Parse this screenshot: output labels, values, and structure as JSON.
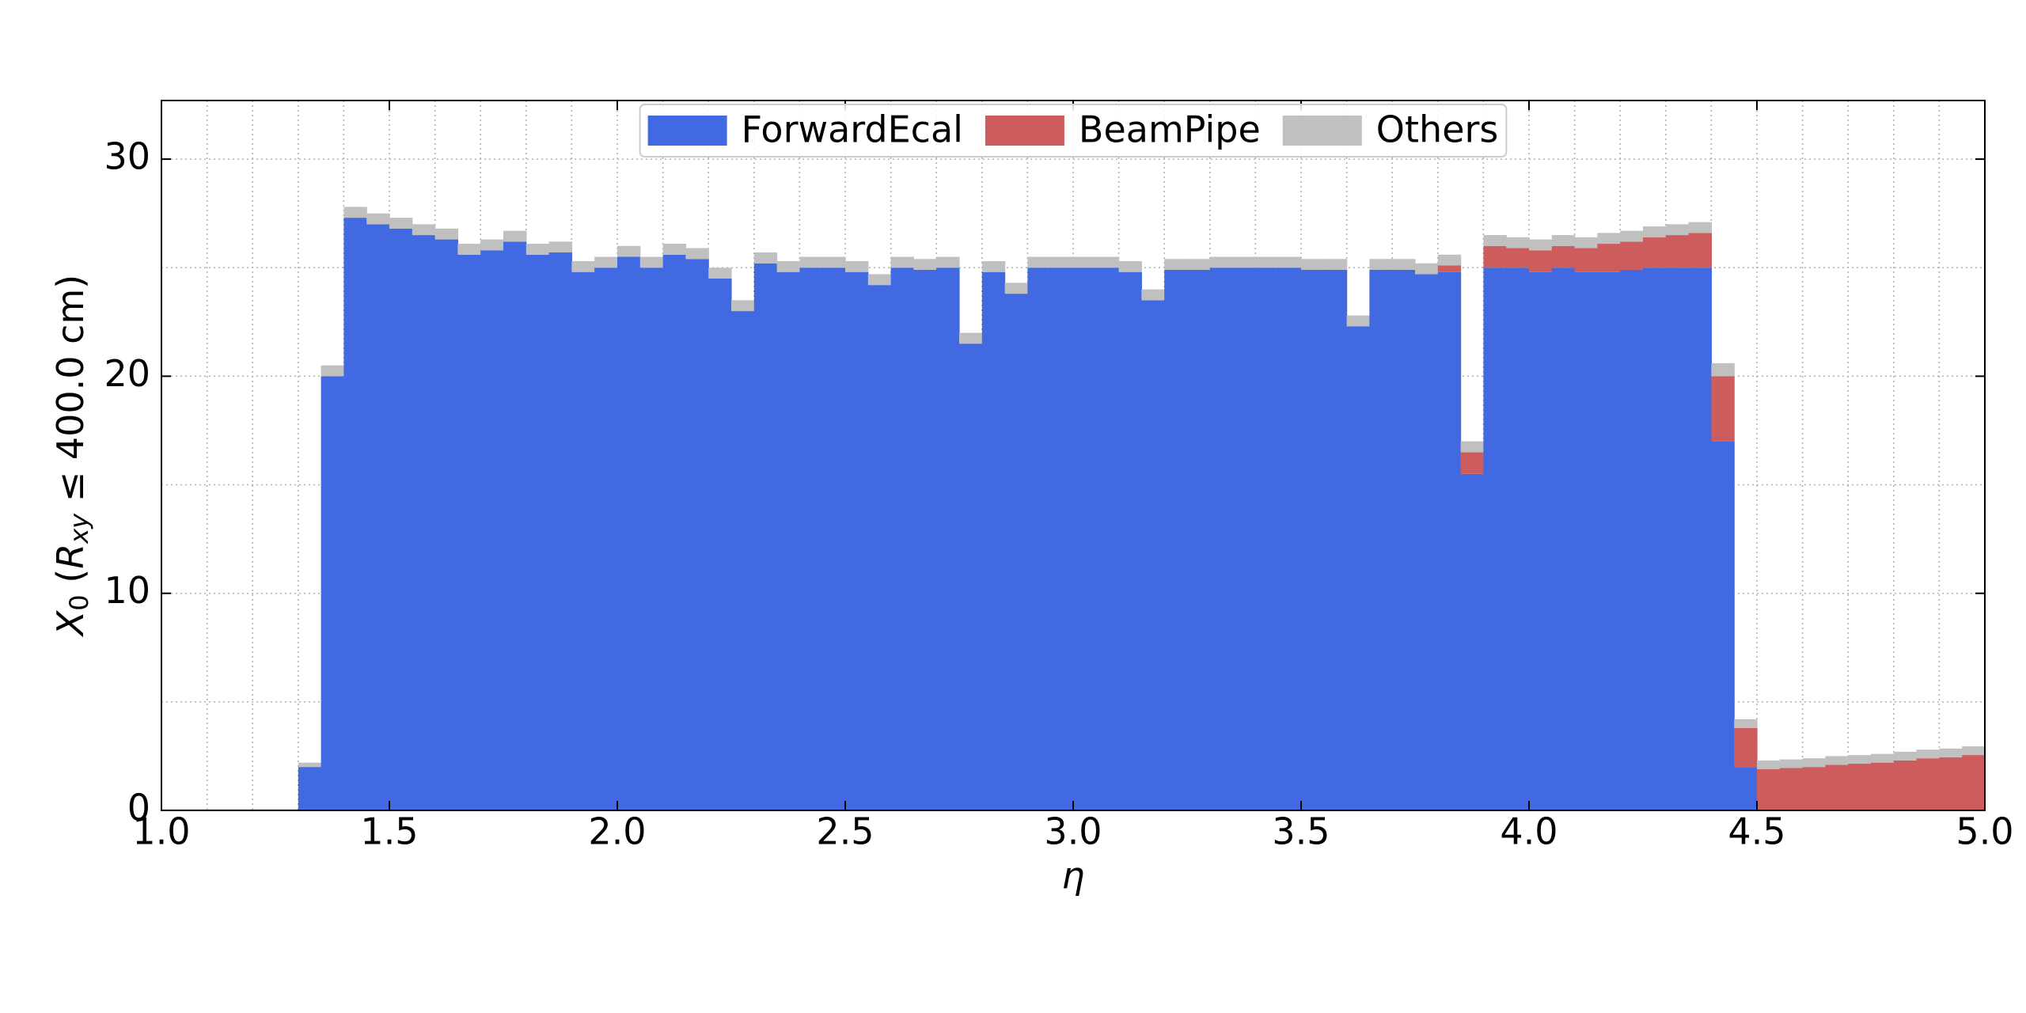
{
  "chart_data": {
    "type": "histogram",
    "stacked": true,
    "xlabel": "η",
    "ylabel": [
      "X",
      "0",
      " (",
      "R",
      "xy",
      " ≤ 400.0 cm)"
    ],
    "bins": [
      1.0,
      1.05,
      1.1,
      1.15,
      1.2,
      1.25,
      1.3,
      1.35,
      1.4,
      1.45,
      1.5,
      1.55,
      1.6,
      1.65,
      1.7,
      1.75,
      1.8,
      1.85,
      1.9,
      1.95,
      2.0,
      2.05,
      2.1,
      2.15,
      2.2,
      2.25,
      2.3,
      2.35,
      2.4,
      2.45,
      2.5,
      2.55,
      2.6,
      2.65,
      2.7,
      2.75,
      2.8,
      2.85,
      2.9,
      2.95,
      3.0,
      3.05,
      3.1,
      3.15,
      3.2,
      3.25,
      3.3,
      3.35,
      3.4,
      3.45,
      3.5,
      3.55,
      3.6,
      3.65,
      3.7,
      3.75,
      3.8,
      3.85,
      3.9,
      3.95,
      4.0,
      4.05,
      4.1,
      4.15,
      4.2,
      4.25,
      4.3,
      4.35,
      4.4,
      4.45,
      4.5,
      4.55,
      4.6,
      4.65,
      4.7,
      4.75,
      4.8,
      4.85,
      4.9,
      4.95,
      5.0
    ],
    "series": [
      {
        "name": "ForwardEcal",
        "color": "#4169e1",
        "values": [
          0,
          0,
          0,
          0,
          0,
          0,
          2,
          20,
          27.3,
          27,
          26.8,
          26.5,
          26.3,
          25.6,
          25.8,
          26.2,
          25.6,
          25.7,
          24.8,
          25,
          25.5,
          25,
          25.6,
          25.4,
          24.5,
          23,
          25.2,
          24.8,
          25,
          25,
          24.8,
          24.2,
          25,
          24.9,
          25,
          21.5,
          24.8,
          23.8,
          25,
          25,
          25,
          25,
          24.8,
          23.5,
          24.9,
          24.9,
          25,
          25,
          25,
          25,
          24.9,
          24.9,
          22.3,
          24.9,
          24.9,
          24.7,
          24.8,
          15.5,
          25,
          25,
          24.8,
          25,
          24.8,
          24.8,
          24.9,
          25,
          25,
          25,
          17,
          2,
          0,
          0,
          0,
          0,
          0,
          0,
          0,
          0,
          0,
          0
        ]
      },
      {
        "name": "BeamPipe",
        "color": "#cd5c5c",
        "values": [
          0,
          0,
          0,
          0,
          0,
          0,
          0,
          0,
          0,
          0,
          0,
          0,
          0,
          0,
          0,
          0,
          0,
          0,
          0,
          0,
          0,
          0,
          0,
          0,
          0,
          0,
          0,
          0,
          0,
          0,
          0,
          0,
          0,
          0,
          0,
          0,
          0,
          0,
          0,
          0,
          0,
          0,
          0,
          0,
          0,
          0,
          0,
          0,
          0,
          0,
          0,
          0,
          0,
          0,
          0,
          0,
          0.3,
          1.0,
          1.0,
          0.9,
          1.0,
          1.0,
          1.1,
          1.3,
          1.3,
          1.4,
          1.5,
          1.6,
          3,
          1.8,
          1.9,
          1.95,
          2.0,
          2.1,
          2.15,
          2.2,
          2.3,
          2.4,
          2.45,
          2.55
        ]
      },
      {
        "name": "Others",
        "color": "#c0c0c0",
        "values": [
          0.05,
          0.05,
          0.05,
          0.05,
          0.05,
          0.05,
          0.2,
          0.5,
          0.5,
          0.5,
          0.5,
          0.5,
          0.5,
          0.5,
          0.5,
          0.5,
          0.5,
          0.5,
          0.5,
          0.5,
          0.5,
          0.5,
          0.5,
          0.5,
          0.5,
          0.5,
          0.5,
          0.5,
          0.5,
          0.5,
          0.5,
          0.5,
          0.5,
          0.5,
          0.5,
          0.5,
          0.5,
          0.5,
          0.5,
          0.5,
          0.5,
          0.5,
          0.5,
          0.5,
          0.5,
          0.5,
          0.5,
          0.5,
          0.5,
          0.5,
          0.5,
          0.5,
          0.5,
          0.5,
          0.5,
          0.5,
          0.5,
          0.5,
          0.5,
          0.5,
          0.5,
          0.5,
          0.5,
          0.5,
          0.5,
          0.5,
          0.5,
          0.5,
          0.6,
          0.4,
          0.4,
          0.4,
          0.4,
          0.4,
          0.4,
          0.4,
          0.4,
          0.4,
          0.4,
          0.4
        ]
      }
    ],
    "xlim": [
      1.0,
      5.0
    ],
    "ylim": [
      0,
      32.7
    ],
    "xticks": [
      {
        "value": 1,
        "label": "1.0"
      },
      1.5,
      {
        "value": 2,
        "label": "2.0"
      },
      2.5,
      {
        "value": 3,
        "label": "3.0"
      },
      3.5,
      {
        "value": 4,
        "label": "4.0"
      },
      4.5,
      {
        "value": 5,
        "label": "5.0"
      }
    ],
    "yticks": [
      0,
      10,
      20,
      30
    ],
    "xminorticks": [
      1.1,
      1.2,
      1.3,
      1.4,
      1.6,
      1.7,
      1.8,
      1.9,
      2.1,
      2.2,
      2.3,
      2.4,
      2.6,
      2.7,
      2.8,
      2.9,
      3.1,
      3.2,
      3.3,
      3.4,
      3.6,
      3.7,
      3.8,
      3.9,
      4.1,
      4.2,
      4.3,
      4.4,
      4.6,
      4.7,
      4.8,
      4.9
    ],
    "yminorticks": [
      5,
      15,
      25
    ],
    "grid": true,
    "legend": "upper center"
  }
}
